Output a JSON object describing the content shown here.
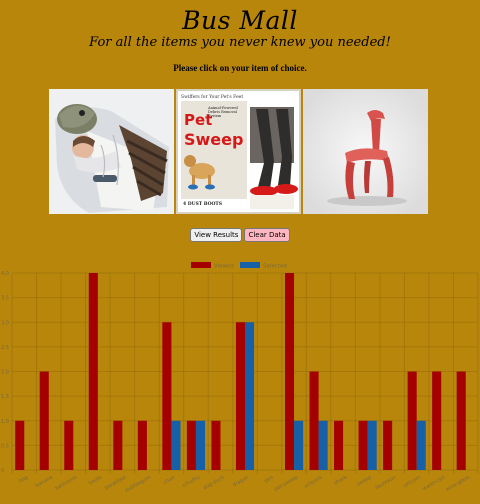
{
  "header": {
    "title": "Bus Mall",
    "subtitle": "For all the items you never knew you needed!"
  },
  "instruction": "Please click on your item of choice.",
  "products": [
    {
      "name": "sleeping-bag-costume-image"
    },
    {
      "name": "pet-sweep-image",
      "text_brand": "Pet Sweep",
      "text_top": "Swiffers for Your Pet's Feet",
      "text_tag": "Animal-Powered Debris Removal System",
      "text_count": "4 DUST BOOTS"
    },
    {
      "name": "red-chair-image"
    }
  ],
  "buttons": {
    "view_results": "View Results",
    "clear_data": "Clear Data"
  },
  "colors": {
    "background": "#b8860b",
    "viewed": "#a50000",
    "selected": "#1660a8"
  },
  "chart_data": {
    "type": "bar",
    "categories": [
      "bag",
      "banana",
      "bathroom",
      "boots",
      "breakfast",
      "bubblegum",
      "chair",
      "cthulhu",
      "dog-duck",
      "dragon",
      "pen",
      "pet-sweep",
      "scissors",
      "shark",
      "sweep",
      "tauntaun",
      "unicorn",
      "water-can",
      "wine-glass"
    ],
    "series": [
      {
        "name": "Viewed",
        "values": [
          1,
          2,
          1,
          4,
          1,
          1,
          3,
          1,
          1,
          3,
          0,
          4,
          2,
          1,
          1,
          1,
          2,
          2,
          2
        ]
      },
      {
        "name": "Selected",
        "values": [
          0,
          0,
          0,
          0,
          0,
          0,
          1,
          1,
          0,
          3,
          0,
          1,
          1,
          0,
          1,
          0,
          1,
          0,
          0
        ]
      }
    ],
    "ylim": [
      0,
      4
    ],
    "yticks": [
      "0",
      "0.5",
      "1.0",
      "1.5",
      "2.0",
      "2.5",
      "3.0",
      "3.5",
      "4.0"
    ],
    "legend_position": "top",
    "grid": true
  }
}
